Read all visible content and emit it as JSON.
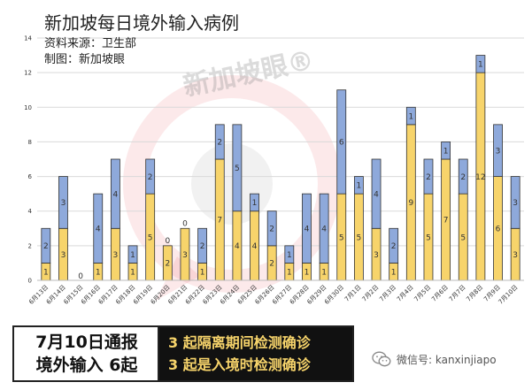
{
  "chart_data": {
    "type": "bar",
    "stacked": true,
    "title": "新加坡每日境外输入病例",
    "subtitle_lines": [
      "资料来源：卫生部",
      "制图：新加坡眼"
    ],
    "watermark": "新加坡眼®",
    "categories": [
      "6月13日",
      "6月14日",
      "6月15日",
      "6月16日",
      "6月17日",
      "6月18日",
      "6月19日",
      "6月20日",
      "6月21日",
      "6月22日",
      "6月23日",
      "6月24日",
      "6月25日",
      "6月26日",
      "6月27日",
      "6月28日",
      "6月29日",
      "6月30日",
      "7月1日",
      "7月2日",
      "7月3日",
      "7月4日",
      "7月5日",
      "7月6日",
      "7月7日",
      "7月8日",
      "7月9日",
      "7月10日"
    ],
    "series": [
      {
        "color": "#f7d46b",
        "values": [
          1,
          3,
          0,
          1,
          3,
          1,
          5,
          2,
          3,
          1,
          7,
          4,
          4,
          2,
          1,
          1,
          1,
          5,
          5,
          3,
          1,
          9,
          5,
          7,
          5,
          12,
          6,
          3
        ]
      },
      {
        "color": "#8ea9db",
        "values": [
          2,
          3,
          0,
          4,
          4,
          1,
          2,
          0,
          0,
          2,
          2,
          5,
          1,
          2,
          1,
          4,
          4,
          6,
          1,
          4,
          2,
          1,
          2,
          1,
          2,
          1,
          3,
          3
        ]
      }
    ],
    "zero_labels": [
      2,
      7,
      8
    ],
    "ylim": [
      0,
      14
    ],
    "yticks": [
      0,
      2,
      4,
      6,
      8,
      10,
      12,
      14
    ],
    "grid": true,
    "colors": {
      "yellow": "#f7d46b",
      "blue": "#8ea9db",
      "watermark": "#e8585a"
    }
  },
  "panel": {
    "line1": "7月10日通报",
    "line2": "境外输入 6起",
    "right_line1": "3 起隔离期间检测确诊",
    "right_line2": "3 起是入境时检测确诊",
    "right_colors": [
      "#f7d46b",
      "#f7d46b"
    ]
  },
  "wechat": {
    "icon": "wechat-icon",
    "text": "微信号: kanxinjiapo"
  }
}
